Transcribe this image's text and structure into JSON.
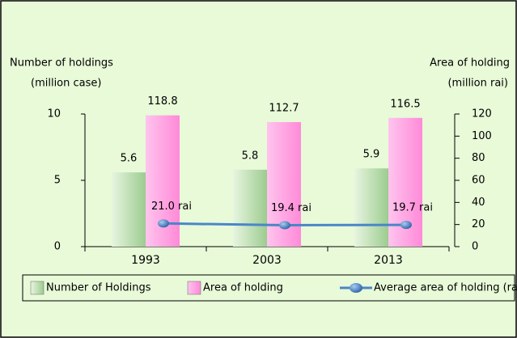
{
  "chart_data": {
    "type": "bar",
    "y_title": [
      "Number of holdings",
      "(million case)"
    ],
    "y2_title": [
      "Area of holding",
      "(million rai)"
    ],
    "categories": [
      "1993",
      "2003",
      "2013"
    ],
    "ylim": [
      0,
      10
    ],
    "yticks": [
      0,
      5,
      10
    ],
    "y2lim": [
      0,
      120
    ],
    "y2ticks": [
      0,
      20,
      40,
      60,
      80,
      100,
      120
    ],
    "series": [
      {
        "name": "Number of Holdings",
        "color": "#b5d9a8",
        "values": [
          5.6,
          5.8,
          5.9
        ]
      },
      {
        "name": "Area of holding",
        "color": "#ff9ee0",
        "axis": "y2",
        "values": [
          118.8,
          112.7,
          116.5
        ]
      },
      {
        "name": "Average area of holding (rai)",
        "type": "line",
        "color": "#4a86c8",
        "axis": "y2",
        "values": [
          21.0,
          19.4,
          19.7
        ],
        "value_labels": [
          "21.0 rai",
          "19.4 rai",
          "19.7 rai"
        ]
      }
    ],
    "legend": "bottom"
  }
}
